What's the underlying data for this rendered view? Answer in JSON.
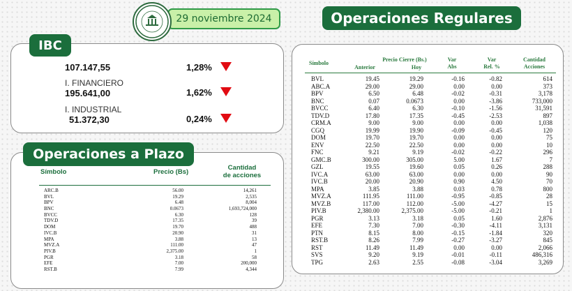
{
  "header": {
    "logo_text": "BOLSA DE VALORES DE CARACAS",
    "date": "29 noviembre 2024"
  },
  "colors": {
    "brand_green": "#1b6e3c",
    "pill_light": "#c9f0a8",
    "down_red": "#e10b12"
  },
  "ibc": {
    "title": "IBC",
    "rows": [
      {
        "name": "",
        "value": "107.147,55",
        "pct": "1,28%",
        "direction": "down-arrow-icon"
      },
      {
        "name": "I. FINANCIERO",
        "value": "195.641,00",
        "pct": "1,62%",
        "direction": "down-arrow-icon"
      },
      {
        "name": "I. INDUSTRIAL",
        "value": "51.372,30",
        "pct": "0,24%",
        "direction": "down-arrow-icon"
      }
    ]
  },
  "plazo": {
    "title": "Operaciones a Plazo",
    "headers": {
      "symbol": "Símbolo",
      "price": "Precio (Bs)",
      "qty_line1": "Cantidad",
      "qty_line2": "de acciones"
    },
    "rows": [
      {
        "sym": "ARC.B",
        "price": "56.00",
        "qty": "14,261"
      },
      {
        "sym": "BVL",
        "price": "19.29",
        "qty": "2,535"
      },
      {
        "sym": "BPV",
        "price": "6.48",
        "qty": "8,004"
      },
      {
        "sym": "BNC",
        "price": "0.0673",
        "qty": "1,693,724,000"
      },
      {
        "sym": "BVCC",
        "price": "6.30",
        "qty": "128"
      },
      {
        "sym": "TDV.D",
        "price": "17.35",
        "qty": "39"
      },
      {
        "sym": "DOM",
        "price": "19.70",
        "qty": "488"
      },
      {
        "sym": "IVC.B",
        "price": "20.90",
        "qty": "31"
      },
      {
        "sym": "MPA",
        "price": "3.88",
        "qty": "13"
      },
      {
        "sym": "MVZ.A",
        "price": "111.00",
        "qty": "47"
      },
      {
        "sym": "PIV.B",
        "price": "2,375.00",
        "qty": "1"
      },
      {
        "sym": "PGR",
        "price": "3.18",
        "qty": "58"
      },
      {
        "sym": "EFE",
        "price": "7.00",
        "qty": "200,000"
      },
      {
        "sym": "RST.B",
        "price": "7.99",
        "qty": "4,344"
      }
    ]
  },
  "regulares": {
    "title": "Operaciones Regulares",
    "headers": {
      "symbol": "Símbolo",
      "price_close": "Precio Cierre (Bs.)",
      "prev": "Anterior",
      "today": "Hoy",
      "var_abs_1": "Var",
      "var_abs_2": "Abs",
      "var_rel_1": "Var",
      "var_rel_2": "Rel. %",
      "qty_1": "Cantidad",
      "qty_2": "Acciones"
    },
    "rows": [
      {
        "sym": "BVL",
        "prev": "19.45",
        "today": "19.29",
        "abs": "-0.16",
        "rel": "-0.82",
        "qty": "614"
      },
      {
        "sym": "ABC.A",
        "prev": "29.00",
        "today": "29.00",
        "abs": "0.00",
        "rel": "0.00",
        "qty": "373"
      },
      {
        "sym": "BPV",
        "prev": "6.50",
        "today": "6.48",
        "abs": "-0.02",
        "rel": "-0.31",
        "qty": "3,178"
      },
      {
        "sym": "BNC",
        "prev": "0.07",
        "today": "0.0673",
        "abs": "0.00",
        "rel": "-3.86",
        "qty": "733,000"
      },
      {
        "sym": "BVCC",
        "prev": "6.40",
        "today": "6.30",
        "abs": "-0.10",
        "rel": "-1.56",
        "qty": "31,591"
      },
      {
        "sym": "TDV.D",
        "prev": "17.80",
        "today": "17.35",
        "abs": "-0.45",
        "rel": "-2.53",
        "qty": "897"
      },
      {
        "sym": "CRM.A",
        "prev": "9.00",
        "today": "9.00",
        "abs": "0.00",
        "rel": "0.00",
        "qty": "1,038"
      },
      {
        "sym": "CGQ",
        "prev": "19.99",
        "today": "19.90",
        "abs": "-0.09",
        "rel": "-0.45",
        "qty": "120"
      },
      {
        "sym": "DOM",
        "prev": "19.70",
        "today": "19.70",
        "abs": "0.00",
        "rel": "0.00",
        "qty": "75"
      },
      {
        "sym": "ENV",
        "prev": "22.50",
        "today": "22.50",
        "abs": "0.00",
        "rel": "0.00",
        "qty": "10"
      },
      {
        "sym": "FNC",
        "prev": "9.21",
        "today": "9.19",
        "abs": "-0.02",
        "rel": "-0.22",
        "qty": "296"
      },
      {
        "sym": "GMC.B",
        "prev": "300.00",
        "today": "305.00",
        "abs": "5.00",
        "rel": "1.67",
        "qty": "7"
      },
      {
        "sym": "GZL",
        "prev": "19.55",
        "today": "19.60",
        "abs": "0.05",
        "rel": "0.26",
        "qty": "288"
      },
      {
        "sym": "IVC.A",
        "prev": "63.00",
        "today": "63.00",
        "abs": "0.00",
        "rel": "0.00",
        "qty": "90"
      },
      {
        "sym": "IVC.B",
        "prev": "20.00",
        "today": "20.90",
        "abs": "0.90",
        "rel": "4.50",
        "qty": "70"
      },
      {
        "sym": "MPA",
        "prev": "3.85",
        "today": "3.88",
        "abs": "0.03",
        "rel": "0.78",
        "qty": "800"
      },
      {
        "sym": "MVZ.A",
        "prev": "111.95",
        "today": "111.00",
        "abs": "-0.95",
        "rel": "-0.85",
        "qty": "28"
      },
      {
        "sym": "MVZ.B",
        "prev": "117.00",
        "today": "112.00",
        "abs": "-5.00",
        "rel": "-4.27",
        "qty": "15"
      },
      {
        "sym": "PIV.B",
        "prev": "2,380.00",
        "today": "2,375.00",
        "abs": "-5.00",
        "rel": "-0.21",
        "qty": "1"
      },
      {
        "sym": "PGR",
        "prev": "3.13",
        "today": "3.18",
        "abs": "0.05",
        "rel": "1.60",
        "qty": "2,876"
      },
      {
        "sym": "EFE",
        "prev": "7.30",
        "today": "7.00",
        "abs": "-0.30",
        "rel": "-4.11",
        "qty": "3,131"
      },
      {
        "sym": "PTN",
        "prev": "8.15",
        "today": "8.00",
        "abs": "-0.15",
        "rel": "-1.84",
        "qty": "320"
      },
      {
        "sym": "RST.B",
        "prev": "8.26",
        "today": "7.99",
        "abs": "-0.27",
        "rel": "-3.27",
        "qty": "845"
      },
      {
        "sym": "RST",
        "prev": "11.49",
        "today": "11.49",
        "abs": "0.00",
        "rel": "0.00",
        "qty": "2,066"
      },
      {
        "sym": "SVS",
        "prev": "9.20",
        "today": "9.19",
        "abs": "-0.01",
        "rel": "-0.11",
        "qty": "486,316"
      },
      {
        "sym": "TPG",
        "prev": "2.63",
        "today": "2.55",
        "abs": "-0.08",
        "rel": "-3.04",
        "qty": "3,269"
      }
    ]
  }
}
